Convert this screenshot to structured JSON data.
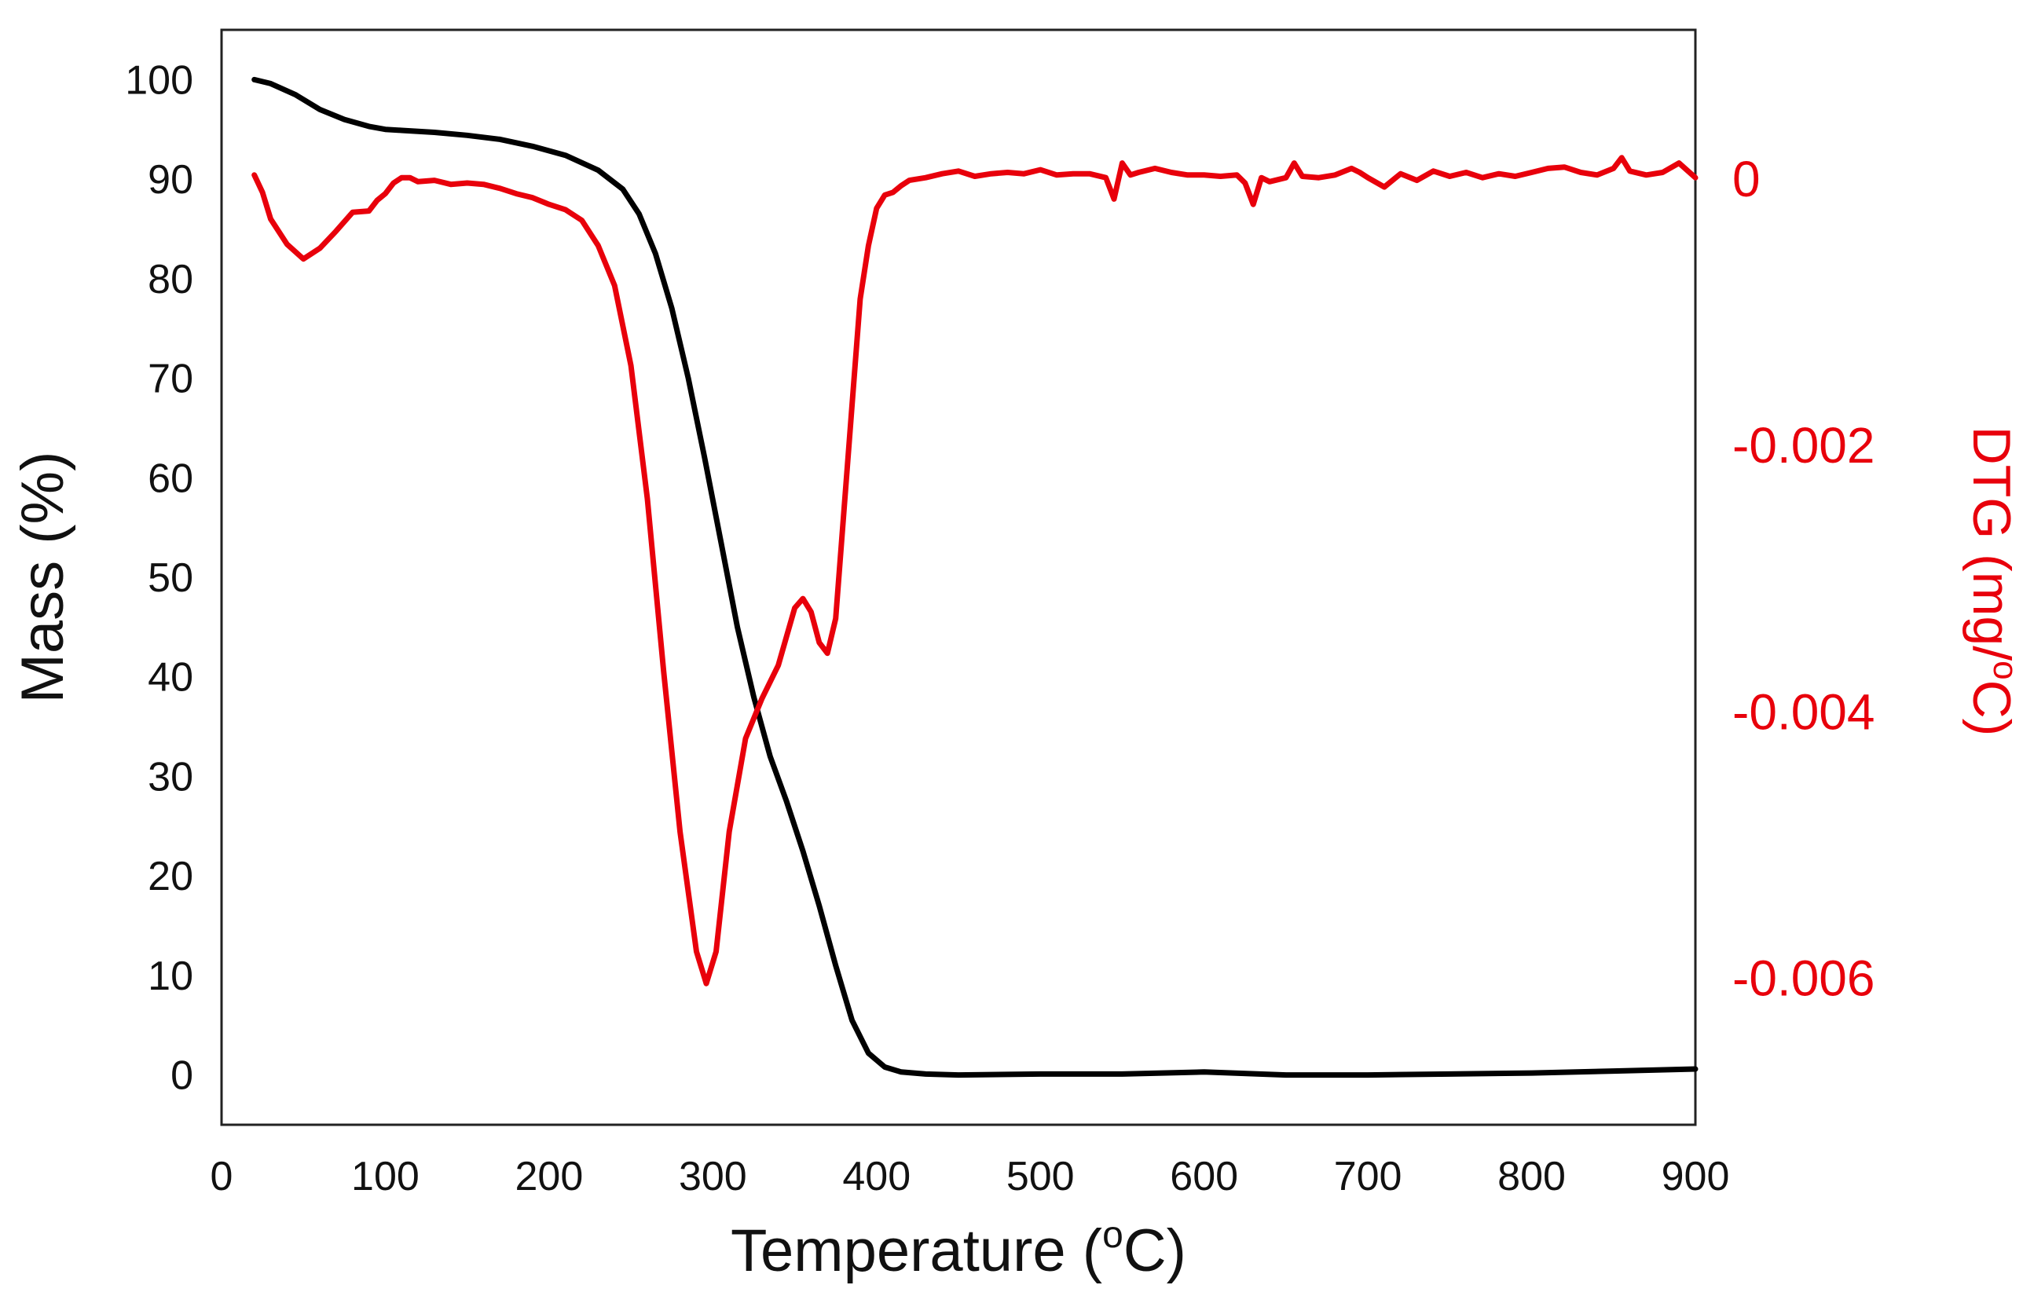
{
  "chart_data": {
    "type": "line",
    "title": "",
    "xlabel": "Temperature (°C)",
    "xlabel_parts": {
      "text": "Temperature (",
      "sup": "o",
      "unit": "C)"
    },
    "ylabel": "Mass (%)",
    "y2label": "DTG (mg/°C)",
    "y2label_parts": {
      "text": "DTG (mg/",
      "sup": "o",
      "unit": "C)"
    },
    "xlim": [
      0,
      900
    ],
    "ylim": [
      -5,
      105
    ],
    "y2lim": [
      -0.0071,
      0.00112
    ],
    "grid": false,
    "x_ticks": [
      0,
      100,
      200,
      300,
      400,
      500,
      600,
      700,
      800,
      900
    ],
    "y_ticks": [
      0,
      10,
      20,
      30,
      40,
      50,
      60,
      70,
      80,
      90,
      100
    ],
    "y2_ticks": [
      {
        "value": 0,
        "label": "0"
      },
      {
        "value": -0.002,
        "label": "-0.002"
      },
      {
        "value": -0.004,
        "label": "-0.004"
      },
      {
        "value": -0.006,
        "label": "-0.006"
      }
    ],
    "series": [
      {
        "name": "Mass",
        "axis": "left",
        "color": "#000000",
        "x": [
          20,
          30,
          45,
          60,
          75,
          90,
          100,
          110,
          130,
          150,
          170,
          190,
          210,
          230,
          245,
          255,
          265,
          275,
          285,
          295,
          305,
          315,
          325,
          335,
          345,
          355,
          365,
          375,
          385,
          395,
          405,
          415,
          430,
          450,
          500,
          550,
          600,
          650,
          700,
          750,
          800,
          850,
          900
        ],
        "values": [
          100,
          99.6,
          98.5,
          97,
          96,
          95.3,
          95,
          94.9,
          94.7,
          94.4,
          94,
          93.3,
          92.4,
          90.9,
          89,
          86.5,
          82.5,
          77,
          70,
          62,
          53.5,
          45,
          38,
          32,
          27.5,
          22.5,
          17,
          11,
          5.5,
          2.2,
          0.8,
          0.3,
          0.1,
          0,
          0.1,
          0.1,
          0.3,
          0,
          0,
          0.1,
          0.2,
          0.4,
          0.6
        ]
      },
      {
        "name": "DTG",
        "axis": "right",
        "color": "#e8000b",
        "x": [
          20,
          25,
          30,
          40,
          50,
          60,
          70,
          80,
          90,
          95,
          100,
          105,
          110,
          115,
          120,
          130,
          140,
          150,
          160,
          170,
          180,
          190,
          200,
          210,
          220,
          230,
          240,
          250,
          260,
          270,
          280,
          290,
          296,
          302,
          310,
          320,
          330,
          340,
          350,
          355,
          360,
          365,
          370,
          375,
          380,
          385,
          390,
          395,
          400,
          405,
          410,
          415,
          420,
          430,
          440,
          450,
          460,
          470,
          480,
          490,
          500,
          510,
          520,
          530,
          540,
          545,
          550,
          555,
          560,
          570,
          580,
          590,
          600,
          610,
          620,
          625,
          630,
          635,
          640,
          650,
          655,
          660,
          670,
          680,
          690,
          695,
          700,
          710,
          720,
          730,
          740,
          750,
          760,
          770,
          780,
          790,
          800,
          810,
          820,
          830,
          840,
          850,
          855,
          860,
          870,
          880,
          890,
          900
        ],
        "values": [
          3e-05,
          -0.0001,
          -0.0003,
          -0.00049,
          -0.0006,
          -0.00052,
          -0.00039,
          -0.00025,
          -0.00024,
          -0.00016,
          -0.00011,
          -3e-05,
          1e-05,
          1e-05,
          -2e-05,
          -1e-05,
          -4e-05,
          -3e-05,
          -4e-05,
          -7e-05,
          -0.00011,
          -0.00014,
          -0.00019,
          -0.00023,
          -0.00031,
          -0.0005,
          -0.0008,
          -0.0014,
          -0.0024,
          -0.0037,
          -0.0049,
          -0.0058,
          -0.00604,
          -0.0058,
          -0.0049,
          -0.0042,
          -0.0039,
          -0.00365,
          -0.00322,
          -0.00315,
          -0.00325,
          -0.00348,
          -0.00356,
          -0.0033,
          -0.0025,
          -0.0017,
          -0.0009,
          -0.0005,
          -0.00022,
          -0.00012,
          -0.0001,
          -5e-05,
          -1e-05,
          1e-05,
          4e-05,
          6e-05,
          2e-05,
          4e-05,
          5e-05,
          4e-05,
          7e-05,
          3e-05,
          4e-05,
          4e-05,
          1e-05,
          -0.00015,
          0.00012,
          3e-05,
          5e-05,
          8e-05,
          5e-05,
          3e-05,
          3e-05,
          2e-05,
          3e-05,
          -3e-05,
          -0.00019,
          1e-05,
          -2e-05,
          1e-05,
          0.00012,
          2e-05,
          1e-05,
          3e-05,
          8e-05,
          5e-05,
          1e-05,
          -6e-05,
          4e-05,
          -1e-05,
          6e-05,
          2e-05,
          5e-05,
          1e-05,
          4e-05,
          2e-05,
          5e-05,
          8e-05,
          9e-05,
          5e-05,
          3e-05,
          8e-05,
          0.00016,
          6e-05,
          3e-05,
          5e-05,
          0.00012,
          1e-05
        ]
      }
    ]
  }
}
